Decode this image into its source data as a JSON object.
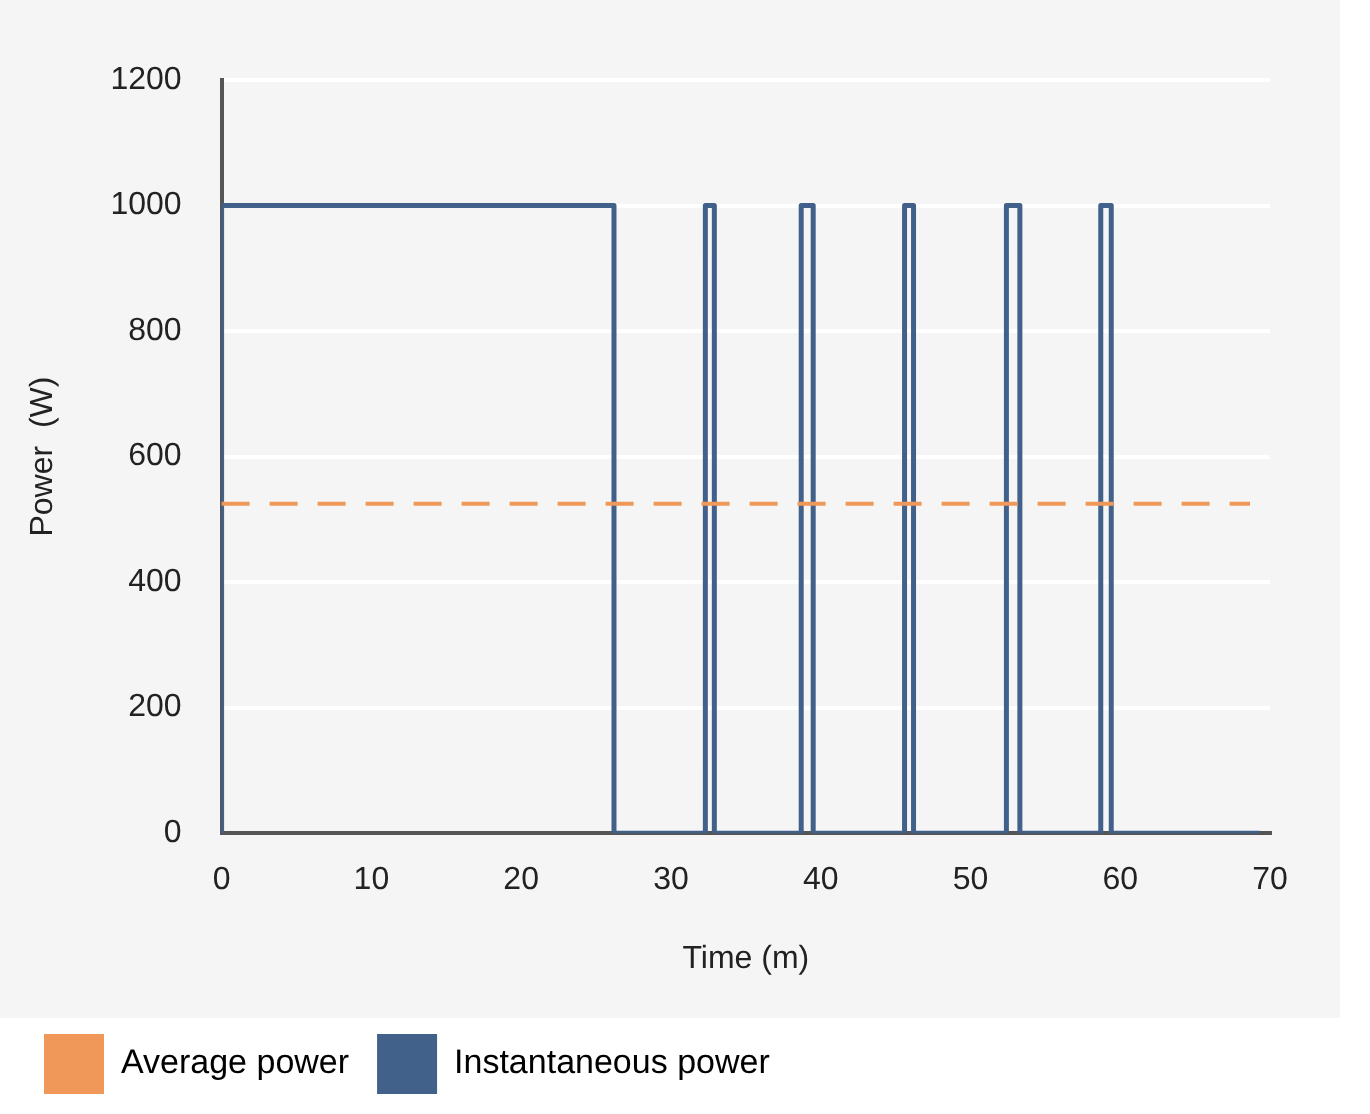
{
  "chart_data": {
    "type": "step",
    "xlabel": "Time (m)",
    "ylabel": "Power  (W)",
    "x": [
      0,
      0,
      26.2,
      32.3,
      32.9,
      38.7,
      39.5,
      45.6,
      46.2,
      52.4,
      53.3,
      58.7,
      59.4,
      69.3
    ],
    "series": [
      {
        "name": "Instantaneous power",
        "color": "#41608a",
        "values": [
          0,
          1000,
          0,
          1000,
          0,
          1000,
          0,
          1000,
          0,
          1000,
          0,
          1000,
          0,
          0
        ]
      }
    ],
    "ref_lines": [
      {
        "axis": "y",
        "value": 525,
        "label": "Average power",
        "color": "#f0975a",
        "line_style": "dashed"
      }
    ],
    "xlim": [
      0,
      70
    ],
    "xticks": [
      0,
      10,
      20,
      30,
      40,
      50,
      60,
      70
    ],
    "ylim": [
      0,
      1200
    ],
    "yticks": [
      0,
      200,
      400,
      600,
      800,
      1000,
      1200
    ],
    "grid": "y",
    "legend": "bottom"
  }
}
